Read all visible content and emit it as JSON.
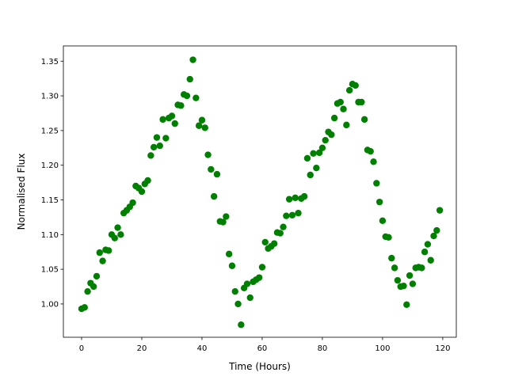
{
  "chart_data": {
    "type": "scatter",
    "xlabel": "Time (Hours)",
    "ylabel": "Normalised Flux",
    "color": "#008000",
    "x": [
      0,
      1,
      2,
      3,
      4,
      5,
      6,
      7,
      8,
      9,
      10,
      11,
      12,
      13,
      14,
      15,
      16,
      17,
      18,
      19,
      20,
      21,
      22,
      23,
      24,
      25,
      26,
      27,
      28,
      29,
      30,
      31,
      32,
      33,
      34,
      35,
      36,
      37,
      38,
      39,
      40,
      41,
      42,
      43,
      44,
      45,
      46,
      47,
      48,
      49,
      50,
      51,
      52,
      53,
      54,
      55,
      56,
      57,
      58,
      59,
      60,
      61,
      62,
      63,
      64,
      65,
      66,
      67,
      68,
      69,
      70,
      71,
      72,
      73,
      74,
      75,
      76,
      77,
      78,
      79,
      80,
      81,
      82,
      83,
      84,
      85,
      86,
      87,
      88,
      89,
      90,
      91,
      92,
      93,
      94,
      95,
      96,
      97,
      98,
      99,
      100,
      101,
      102,
      103,
      104,
      105,
      106,
      107,
      108,
      109,
      110,
      111,
      112,
      113,
      114,
      115,
      116,
      117,
      118,
      119
    ],
    "values": [
      0.993,
      0.995,
      1.018,
      1.03,
      1.025,
      1.04,
      1.074,
      1.062,
      1.078,
      1.077,
      1.1,
      1.095,
      1.11,
      1.1,
      1.131,
      1.135,
      1.14,
      1.146,
      1.17,
      1.167,
      1.162,
      1.173,
      1.178,
      1.214,
      1.226,
      1.24,
      1.228,
      1.266,
      1.239,
      1.268,
      1.271,
      1.26,
      1.287,
      1.286,
      1.302,
      1.3,
      1.324,
      1.352,
      1.297,
      1.257,
      1.265,
      1.254,
      1.215,
      1.194,
      1.155,
      1.187,
      1.119,
      1.118,
      1.126,
      1.072,
      1.055,
      1.018,
      1.0,
      0.97,
      1.023,
      1.029,
      1.009,
      1.032,
      1.035,
      1.038,
      1.053,
      1.089,
      1.08,
      1.083,
      1.087,
      1.103,
      1.102,
      1.111,
      1.127,
      1.151,
      1.128,
      1.153,
      1.131,
      1.152,
      1.155,
      1.21,
      1.186,
      1.217,
      1.196,
      1.218,
      1.225,
      1.236,
      1.248,
      1.244,
      1.268,
      1.289,
      1.291,
      1.281,
      1.258,
      1.308,
      1.317,
      1.315,
      1.291,
      1.291,
      1.266,
      1.222,
      1.22,
      1.205,
      1.174,
      1.147,
      1.12,
      1.097,
      1.096,
      1.066,
      1.052,
      1.034,
      1.025,
      1.026,
      0.999,
      1.041,
      1.029,
      1.052,
      1.053,
      1.052,
      1.075,
      1.086,
      1.063,
      1.098,
      1.106,
      1.135
    ],
    "xlim": [
      -6.05,
      124.5
    ],
    "ylim": [
      0.952,
      1.372
    ],
    "xticks": [
      0,
      20,
      40,
      60,
      80,
      100,
      120
    ],
    "yticks": [
      {
        "value": 1,
        "label": "1.00"
      },
      1.05,
      {
        "value": 1.1,
        "label": "1.10"
      },
      1.15,
      {
        "value": 1.2,
        "label": "1.20"
      },
      1.25,
      {
        "value": 1.3,
        "label": "1.30"
      },
      1.35
    ]
  }
}
